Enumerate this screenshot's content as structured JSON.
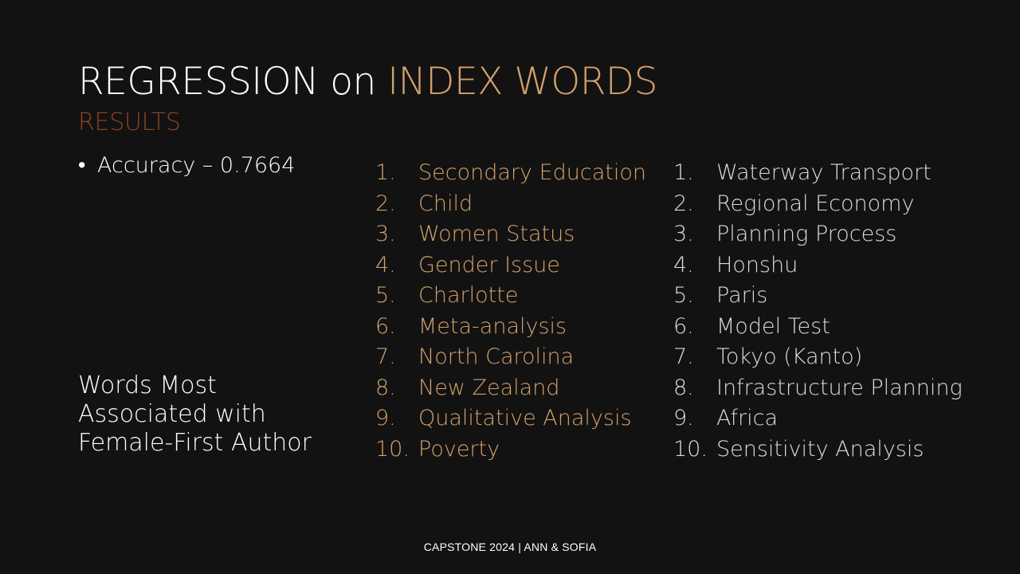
{
  "title": {
    "part1": "REGRESSION on ",
    "part2": "INDEX WORDS"
  },
  "subtitle": "RESULTS",
  "bullet": {
    "symbol": "•",
    "text": "Accuracy – 0.7664"
  },
  "association_label": "Words Most Associated with Female-First Author",
  "female_words": [
    {
      "num": "1.",
      "word": "Secondary Education"
    },
    {
      "num": "2.",
      "word": "Child"
    },
    {
      "num": "3.",
      "word": "Women Status"
    },
    {
      "num": "4.",
      "word": "Gender Issue"
    },
    {
      "num": "5.",
      "word": "Charlotte"
    },
    {
      "num": "6.",
      "word": "Meta-analysis"
    },
    {
      "num": "7.",
      "word": "North Carolina"
    },
    {
      "num": "8.",
      "word": "New Zealand"
    },
    {
      "num": "9.",
      "word": "Qualitative Analysis"
    },
    {
      "num": "10.",
      "word": "Poverty"
    }
  ],
  "other_words": [
    {
      "num": "1.",
      "word": "Waterway Transport"
    },
    {
      "num": "2.",
      "word": "Regional Economy"
    },
    {
      "num": "3.",
      "word": "Planning Process"
    },
    {
      "num": "4.",
      "word": "Honshu"
    },
    {
      "num": "5.",
      "word": "Paris"
    },
    {
      "num": "6.",
      "word": "Model Test"
    },
    {
      "num": "7.",
      "word": "Tokyo (Kanto)"
    },
    {
      "num": "8.",
      "word": "Infrastructure Planning"
    },
    {
      "num": "9.",
      "word": "Africa"
    },
    {
      "num": "10.",
      "word": "Sensitivity Analysis"
    }
  ],
  "footer": "CAPSTONE 2024 | ANN & SOFIA",
  "colors": {
    "background": "#121212",
    "accent": "#d4a16a",
    "subtitle": "#8a4423",
    "text": "#ffffff",
    "secondary_text": "#dcdcdc"
  }
}
